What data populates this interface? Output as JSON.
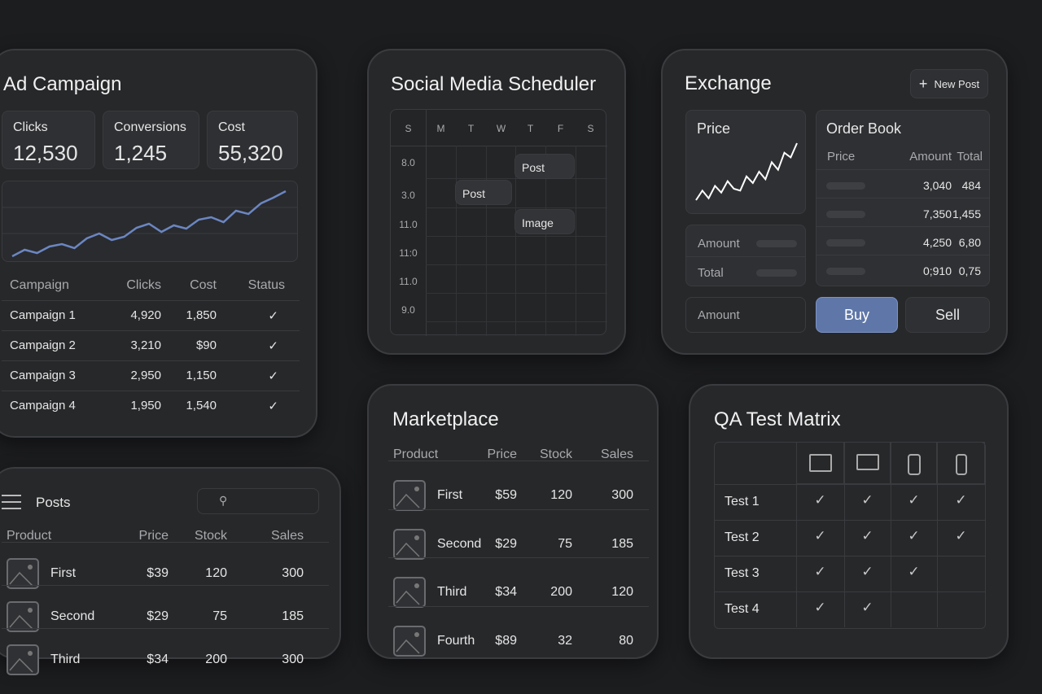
{
  "ad_campaign": {
    "title": "Ad Campaign",
    "stats": [
      {
        "label": "Clicks",
        "value": "12,530"
      },
      {
        "label": "Conversions",
        "value": "1,245"
      },
      {
        "label": "Cost",
        "value": "55,320"
      }
    ],
    "trend": [
      10,
      18,
      14,
      22,
      25,
      20,
      32,
      38,
      30,
      34,
      45,
      50,
      40,
      48,
      44,
      55,
      58,
      52,
      66,
      62,
      75,
      82,
      90
    ],
    "line_color": "#6b86c2",
    "columns": [
      "Campaign",
      "Clicks",
      "Cost",
      "Status"
    ],
    "rows": [
      {
        "name": "Campaign 1",
        "clicks": "4,920",
        "cost": "1,850",
        "status": "✓"
      },
      {
        "name": "Campaign 2",
        "clicks": "3,210",
        "cost": "$90",
        "status": "✓"
      },
      {
        "name": "Campaign 3",
        "clicks": "2,950",
        "cost": "1,150",
        "status": "✓"
      },
      {
        "name": "Campaign 4",
        "clicks": "1,950",
        "cost": "1,540",
        "status": "✓"
      }
    ]
  },
  "scheduler": {
    "title": "Social Media Scheduler",
    "days": [
      "S",
      "M",
      "T",
      "W",
      "T",
      "F",
      "S"
    ],
    "times": [
      "8.0",
      "3.0",
      "11.0",
      "11:0",
      "11.0",
      "9.0"
    ],
    "events": [
      {
        "label": "Post"
      },
      {
        "label": "Post"
      },
      {
        "label": "Image"
      }
    ]
  },
  "exchange": {
    "title": "Exchange",
    "new_post": "New Post",
    "price_label": "Price",
    "price_series": [
      20,
      30,
      22,
      35,
      28,
      40,
      32,
      30,
      45,
      38,
      50,
      42,
      60,
      52,
      70,
      65,
      80
    ],
    "order_book": {
      "title": "Order Book",
      "columns": [
        "Price",
        "Amount",
        "Total"
      ],
      "rows": [
        {
          "amount": "3,040",
          "total": "484"
        },
        {
          "amount": "7,350",
          "total": "1,455"
        },
        {
          "amount": "4,250",
          "total": "6,80"
        },
        {
          "amount": "0;910",
          "total": "0,75"
        }
      ]
    },
    "amount_label": "Amount",
    "total_label": "Total",
    "amount_placeholder": "Amount",
    "buy": "Buy",
    "sell": "Sell",
    "buy_color": "#5f77a8"
  },
  "posts": {
    "title": "Posts",
    "columns": [
      "Product",
      "Price",
      "Stock",
      "Sales"
    ],
    "rows": [
      {
        "name": "First",
        "price": "$39",
        "stock": "120",
        "sales": "300"
      },
      {
        "name": "Second",
        "price": "$29",
        "stock": "75",
        "sales": "185"
      },
      {
        "name": "Third",
        "price": "$34",
        "stock": "200",
        "sales": "300"
      }
    ]
  },
  "marketplace": {
    "title": "Marketplace",
    "columns": [
      "Product",
      "Price",
      "Stock",
      "Sales"
    ],
    "rows": [
      {
        "name": "First",
        "price": "$59",
        "stock": "120",
        "sales": "300"
      },
      {
        "name": "Second",
        "price": "$29",
        "stock": "75",
        "sales": "185"
      },
      {
        "name": "Third",
        "price": "$34",
        "stock": "200",
        "sales": "120"
      },
      {
        "name": "Fourth",
        "price": "$89",
        "stock": "32",
        "sales": "80"
      }
    ]
  },
  "qa": {
    "title": "QA Test Matrix",
    "devices": [
      "desktop-icon",
      "laptop-icon",
      "tablet-icon",
      "phone-icon"
    ],
    "tests": [
      {
        "name": "Test 1",
        "results": [
          1,
          1,
          1,
          1
        ]
      },
      {
        "name": "Test 2",
        "results": [
          1,
          1,
          1,
          1
        ]
      },
      {
        "name": "Test 3",
        "results": [
          1,
          1,
          1,
          0
        ]
      },
      {
        "name": "Test 4",
        "results": [
          1,
          1,
          0,
          0
        ]
      }
    ],
    "check": "✓"
  }
}
